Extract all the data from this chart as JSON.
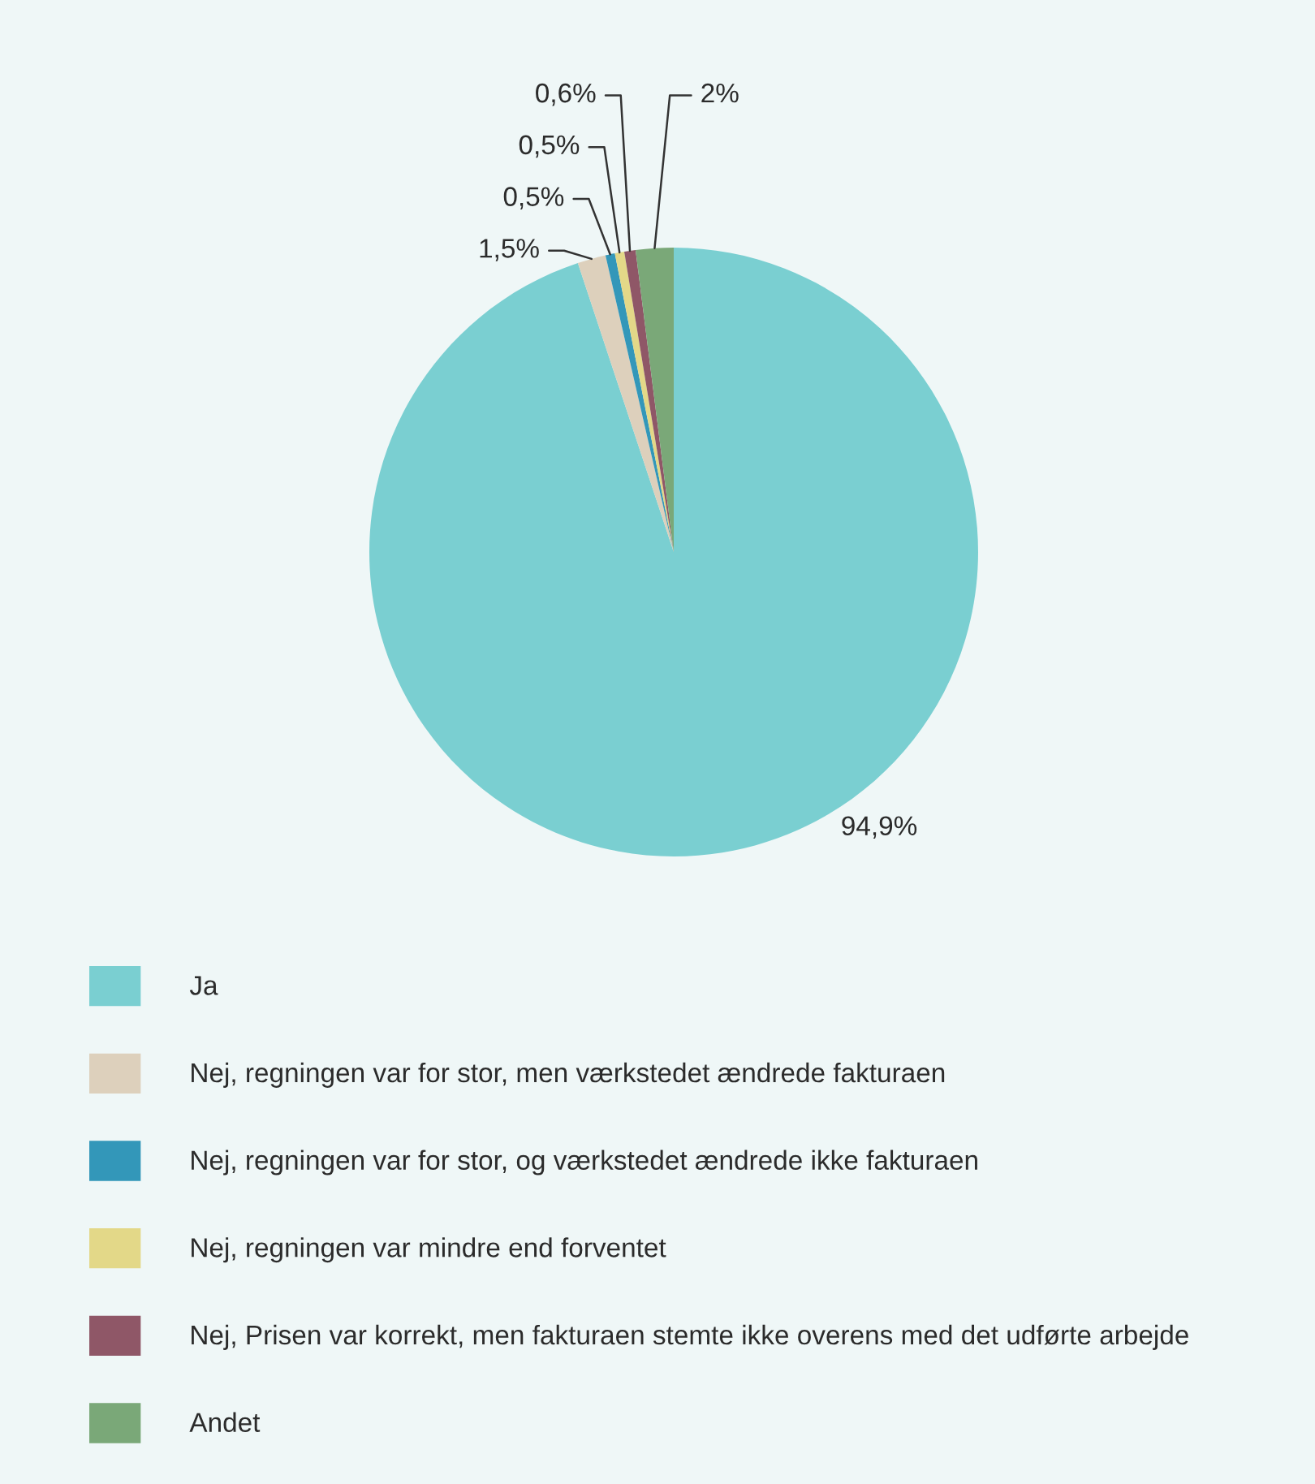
{
  "chart_data": {
    "type": "pie",
    "categories": [
      "Ja",
      "Nej, regningen var for stor, men værkstedet ændrede fakturaen",
      "Nej, regningen var for stor, og værkstedet ændrede ikke fakturaen",
      "Nej, regningen var mindre end forventet",
      "Nej, Prisen var korrekt, men fakturaen stemte ikke overens med det udførte arbejde",
      "Andet"
    ],
    "values": [
      94.9,
      1.5,
      0.5,
      0.5,
      0.6,
      2
    ],
    "value_labels": [
      "94,9%",
      "1,5%",
      "0,5%",
      "0,5%",
      "0,6%",
      "2%"
    ],
    "colors": [
      "#7acfd1",
      "#ddd0bc",
      "#3397b9",
      "#e3d888",
      "#8f5767",
      "#7aa878"
    ],
    "legend": "bottom"
  }
}
